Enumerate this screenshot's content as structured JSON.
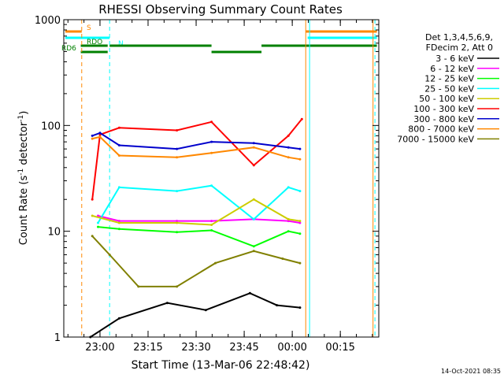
{
  "chart_data": {
    "type": "line",
    "title": "RHESSI Observing Summary Count Rates",
    "xlabel": "Start Time (13-Mar-06 22:48:42)",
    "ylabel_prefix": "Count Rate (s",
    "ylabel_sup1": "-1",
    "ylabel_mid": " detector",
    "ylabel_sup2": "-1",
    "ylabel_suffix": ")",
    "yscale": "log",
    "ylim": [
      1,
      1000
    ],
    "xlim": [
      22.8117,
      24.45
    ],
    "x_ticks": [
      {
        "v": 23.0,
        "label": "23:00"
      },
      {
        "v": 23.25,
        "label": "23:15"
      },
      {
        "v": 23.5,
        "label": "23:30"
      },
      {
        "v": 23.75,
        "label": "23:45"
      },
      {
        "v": 24.0,
        "label": "00:00"
      },
      {
        "v": 24.25,
        "label": "00:15"
      }
    ],
    "y_ticks": [
      {
        "v": 1,
        "label": "1"
      },
      {
        "v": 10,
        "label": "10"
      },
      {
        "v": 100,
        "label": "100"
      },
      {
        "v": 1000,
        "label": "1000"
      }
    ],
    "legend_header": [
      "Det 1,3,4,5,6,9,",
      "FDecim 2, Att 0"
    ],
    "legend_placement": "right",
    "series": [
      {
        "name": "3 - 6 keV",
        "color": "#000000",
        "values": [
          [
            22.95,
            1.0
          ],
          [
            23.1,
            1.5
          ],
          [
            23.35,
            2.1
          ],
          [
            23.55,
            1.8
          ],
          [
            23.78,
            2.6
          ],
          [
            23.92,
            2.0
          ],
          [
            24.04,
            1.9
          ]
        ]
      },
      {
        "name": "6 - 12 keV",
        "color": "#ff00ff",
        "values": [
          [
            22.99,
            14.0
          ],
          [
            23.1,
            12.5
          ],
          [
            23.4,
            12.5
          ],
          [
            23.58,
            12.5
          ],
          [
            23.8,
            13.0
          ],
          [
            23.98,
            12.5
          ],
          [
            24.04,
            12.0
          ]
        ]
      },
      {
        "name": "12 - 25 keV",
        "color": "#00ff00",
        "values": [
          [
            22.99,
            11.0
          ],
          [
            23.1,
            10.5
          ],
          [
            23.4,
            9.8
          ],
          [
            23.58,
            10.2
          ],
          [
            23.8,
            7.2
          ],
          [
            23.98,
            10.0
          ],
          [
            24.04,
            9.5
          ]
        ]
      },
      {
        "name": "25 - 50 keV",
        "color": "#00ffff",
        "values": [
          [
            22.99,
            12.0
          ],
          [
            23.1,
            26.0
          ],
          [
            23.4,
            24.0
          ],
          [
            23.58,
            27.0
          ],
          [
            23.8,
            13.0
          ],
          [
            23.98,
            26.0
          ],
          [
            24.04,
            24.0
          ]
        ]
      },
      {
        "name": "50 - 100 keV",
        "color": "#cccc00",
        "values": [
          [
            22.96,
            14.0
          ],
          [
            23.1,
            12.0
          ],
          [
            23.4,
            12.0
          ],
          [
            23.58,
            11.5
          ],
          [
            23.8,
            20.0
          ],
          [
            23.98,
            13.0
          ],
          [
            24.04,
            12.5
          ]
        ]
      },
      {
        "name": "100 - 300 keV",
        "color": "#ff0000",
        "values": [
          [
            22.96,
            20.0
          ],
          [
            23.0,
            82.0
          ],
          [
            23.1,
            95.0
          ],
          [
            23.4,
            90.0
          ],
          [
            23.58,
            108.0
          ],
          [
            23.8,
            42.0
          ],
          [
            23.98,
            80.0
          ],
          [
            24.05,
            115.0
          ]
        ]
      },
      {
        "name": "300 - 800 keV",
        "color": "#0000cc",
        "values": [
          [
            22.96,
            80.0
          ],
          [
            23.0,
            85.0
          ],
          [
            23.1,
            65.0
          ],
          [
            23.4,
            60.0
          ],
          [
            23.58,
            70.0
          ],
          [
            23.8,
            68.0
          ],
          [
            23.98,
            62.0
          ],
          [
            24.04,
            60.0
          ]
        ]
      },
      {
        "name": "800 - 7000 keV",
        "color": "#ff8800",
        "values": [
          [
            22.96,
            75.0
          ],
          [
            23.0,
            78.0
          ],
          [
            23.1,
            52.0
          ],
          [
            23.4,
            50.0
          ],
          [
            23.58,
            55.0
          ],
          [
            23.8,
            62.0
          ],
          [
            23.98,
            50.0
          ],
          [
            24.04,
            48.0
          ]
        ]
      },
      {
        "name": "7000 - 15000 keV",
        "color": "#808000",
        "values": [
          [
            22.96,
            9.0
          ],
          [
            23.05,
            6.0
          ],
          [
            23.2,
            3.0
          ],
          [
            23.4,
            3.0
          ],
          [
            23.6,
            5.0
          ],
          [
            23.8,
            6.5
          ],
          [
            23.95,
            5.5
          ],
          [
            24.04,
            5.0
          ]
        ]
      }
    ],
    "flag_bars": [
      {
        "label": "S",
        "color": "#ff8800",
        "segments": [
          [
            22.82,
            22.905
          ],
          [
            24.07,
            24.44
          ]
        ]
      },
      {
        "label": "N",
        "color": "#00ffff",
        "segments": [
          [
            22.82,
            23.05
          ],
          [
            24.08,
            24.44
          ]
        ]
      },
      {
        "label": "RDO",
        "color": "#008000",
        "segments": [
          [
            22.9,
            23.04
          ],
          [
            23.05,
            23.58
          ],
          [
            23.84,
            24.44
          ]
        ]
      },
      {
        "label": "RD6",
        "color": "#008000",
        "segments": [
          [
            22.9,
            23.04
          ],
          [
            23.58,
            23.84
          ]
        ]
      }
    ],
    "vlines": [
      {
        "x": 22.905,
        "color": "#ff8800",
        "dash": true
      },
      {
        "x": 23.05,
        "color": "#00ffff",
        "dash": true
      },
      {
        "x": 24.07,
        "color": "#ff8800",
        "dash": false
      },
      {
        "x": 24.09,
        "color": "#00ffff",
        "dash": false
      },
      {
        "x": 24.42,
        "color": "#ff8800",
        "dash": false
      },
      {
        "x": 24.43,
        "color": "#00ffff",
        "dash": true
      }
    ],
    "timestamp": "14-Oct-2021 08:35"
  }
}
